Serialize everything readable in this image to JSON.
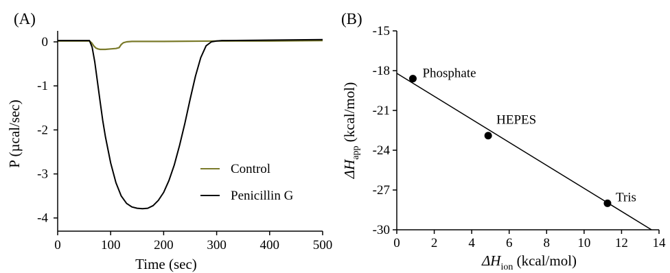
{
  "chart_data": [
    {
      "panel": "(A)",
      "type": "line",
      "xlabel": "Time (sec)",
      "ylabel": "P (µcal/sec)",
      "xlim": [
        0,
        500
      ],
      "ylim": [
        -4.3,
        0.25
      ],
      "xticks": [
        "0",
        "100",
        "200",
        "300",
        "400",
        "500"
      ],
      "yticks": [
        "0",
        "-1",
        "-2",
        "-3",
        "-4"
      ],
      "grid": false,
      "legend": "center-right",
      "series": [
        {
          "name": "Control",
          "color": "#7a7a2a",
          "x": [
            0,
            60,
            64,
            68,
            72,
            76,
            80,
            90,
            100,
            110,
            116,
            120,
            124,
            130,
            140,
            160,
            200,
            300,
            400,
            500
          ],
          "y": [
            0.02,
            0.02,
            -0.02,
            -0.09,
            -0.14,
            -0.16,
            -0.17,
            -0.17,
            -0.16,
            -0.15,
            -0.13,
            -0.06,
            -0.02,
            0.0,
            0.01,
            0.01,
            0.01,
            0.02,
            0.02,
            0.03
          ]
        },
        {
          "name": "Penicillin G",
          "color": "#000000",
          "x": [
            0,
            60,
            65,
            70,
            75,
            80,
            85,
            90,
            100,
            110,
            120,
            130,
            140,
            150,
            160,
            170,
            180,
            190,
            200,
            210,
            220,
            230,
            240,
            250,
            260,
            270,
            280,
            290,
            300,
            310,
            320,
            400,
            500
          ],
          "y": [
            0.03,
            0.03,
            -0.12,
            -0.45,
            -0.9,
            -1.35,
            -1.78,
            -2.15,
            -2.75,
            -3.2,
            -3.5,
            -3.67,
            -3.75,
            -3.78,
            -3.79,
            -3.78,
            -3.72,
            -3.6,
            -3.42,
            -3.15,
            -2.8,
            -2.35,
            -1.85,
            -1.3,
            -0.78,
            -0.36,
            -0.09,
            0.0,
            0.02,
            0.03,
            0.03,
            0.04,
            0.05
          ]
        }
      ]
    },
    {
      "panel": "(B)",
      "type": "scatter",
      "xlabel": "ΔH",
      "xlabel_sub": "ion",
      "xlabel_rest": " (kcal/mol)",
      "ylabel": "ΔH",
      "ylabel_sub": "app",
      "ylabel_rest": " (kcal/mol)",
      "xlim": [
        0,
        14
      ],
      "ylim": [
        -30,
        -15
      ],
      "xticks": [
        "0",
        "2",
        "4",
        "6",
        "8",
        "10",
        "12",
        "14"
      ],
      "yticks": [
        "-15",
        "-18",
        "-21",
        "-24",
        "-27",
        "-30"
      ],
      "grid": false,
      "points": [
        {
          "label": "Phosphate",
          "x": 0.86,
          "y": -18.6
        },
        {
          "label": "HEPES",
          "x": 4.88,
          "y": -22.9
        },
        {
          "label": "Tris",
          "x": 11.25,
          "y": -28.0
        }
      ],
      "fit_line": {
        "x": [
          0,
          13.6
        ],
        "y": [
          -18.2,
          -30.0
        ]
      }
    }
  ]
}
